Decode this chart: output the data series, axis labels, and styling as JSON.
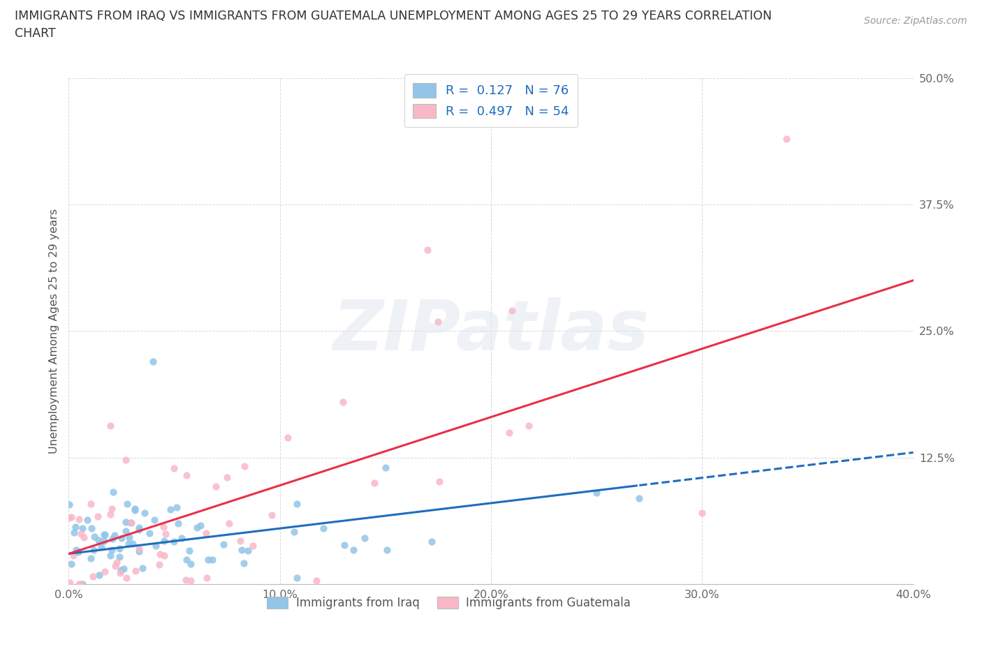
{
  "title_line1": "IMMIGRANTS FROM IRAQ VS IMMIGRANTS FROM GUATEMALA UNEMPLOYMENT AMONG AGES 25 TO 29 YEARS CORRELATION",
  "title_line2": "CHART",
  "source": "Source: ZipAtlas.com",
  "ylabel": "Unemployment Among Ages 25 to 29 years",
  "xlim": [
    0.0,
    0.4
  ],
  "ylim": [
    0.0,
    0.5
  ],
  "xtick_labels": [
    "0.0%",
    "10.0%",
    "20.0%",
    "30.0%",
    "40.0%"
  ],
  "xtick_vals": [
    0.0,
    0.1,
    0.2,
    0.3,
    0.4
  ],
  "ytick_labels": [
    "12.5%",
    "25.0%",
    "37.5%",
    "50.0%"
  ],
  "ytick_vals": [
    0.125,
    0.25,
    0.375,
    0.5
  ],
  "iraq_color": "#92c5e8",
  "guatemala_color": "#f9b8c8",
  "iraq_trend_color": "#1f6dbf",
  "guatemala_trend_color": "#e8304a",
  "iraq_R": 0.127,
  "iraq_N": 76,
  "guatemala_R": 0.497,
  "guatemala_N": 54,
  "watermark_text": "ZIPatlas",
  "background_color": "#ffffff",
  "grid_color": "#d8d8d8",
  "legend_text_color": "#1f6dbf",
  "iraq_trend_start_x": 0.0,
  "iraq_trend_end_solid_x": 0.27,
  "iraq_trend_end_dashed_x": 0.4,
  "iraq_trend_start_y": 0.03,
  "iraq_trend_end_y": 0.13,
  "guat_trend_start_x": 0.0,
  "guat_trend_end_x": 0.4,
  "guat_trend_start_y": 0.03,
  "guat_trend_end_y": 0.3
}
